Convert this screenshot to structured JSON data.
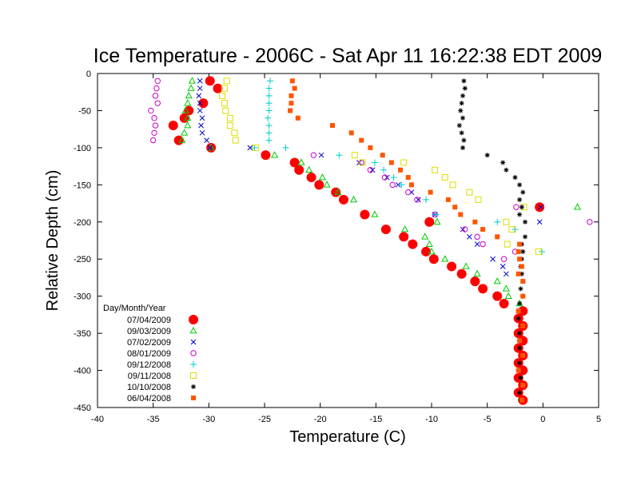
{
  "chart_data": {
    "type": "scatter",
    "title": "Ice Temperature - 2006C - Sat Apr 11 16:22:38 EDT 2009",
    "xlabel": "Temperature (C)",
    "ylabel": "Relative Depth (cm)",
    "xlim": [
      -40,
      5
    ],
    "ylim": [
      -450,
      0
    ],
    "xticks": [
      "-40",
      "-35",
      "-30",
      "-25",
      "-20",
      "-15",
      "-10",
      "-5",
      "0",
      "5"
    ],
    "yticks": [
      "0",
      "-50",
      "-100",
      "-150",
      "-200",
      "-250",
      "-300",
      "-350",
      "-400",
      "-450"
    ],
    "grid": false,
    "legend_title": "Day/Month/Year",
    "legend_position": "bottom-left",
    "series": [
      {
        "name": "07/04/2009",
        "marker": "filled-circle",
        "color": "#ff0000",
        "points": [
          [
            -29.9,
            -10
          ],
          [
            -29.2,
            -20
          ],
          [
            -30.5,
            -40
          ],
          [
            -31.8,
            -50
          ],
          [
            -32.2,
            -60
          ],
          [
            -33.2,
            -70
          ],
          [
            -32.7,
            -90
          ],
          [
            -29.8,
            -100
          ],
          [
            -24.9,
            -110
          ],
          [
            -22.3,
            -120
          ],
          [
            -21.9,
            -130
          ],
          [
            -20.8,
            -140
          ],
          [
            -20.1,
            -150
          ],
          [
            -18.6,
            -160
          ],
          [
            -17.9,
            -170
          ],
          [
            -16,
            -190
          ],
          [
            -14.1,
            -210
          ],
          [
            -12.5,
            -220
          ],
          [
            -11.7,
            -230
          ],
          [
            -10.5,
            -240
          ],
          [
            -9.8,
            -250
          ],
          [
            -8.2,
            -260
          ],
          [
            -7.3,
            -270
          ],
          [
            -6.1,
            -280
          ],
          [
            -5.4,
            -290
          ],
          [
            -4.1,
            -300
          ],
          [
            -3.5,
            -310
          ],
          [
            -10.2,
            -200
          ],
          [
            -0.3,
            -180
          ],
          [
            -1.8,
            -320
          ],
          [
            -2.2,
            -330
          ],
          [
            -1.8,
            -340
          ],
          [
            -2.2,
            -350
          ],
          [
            -1.8,
            -360
          ],
          [
            -2.2,
            -370
          ],
          [
            -1.8,
            -380
          ],
          [
            -2.2,
            -390
          ],
          [
            -1.8,
            -400
          ],
          [
            -2.2,
            -410
          ],
          [
            -1.8,
            -420
          ],
          [
            -2.2,
            -430
          ],
          [
            -1.8,
            -440
          ]
        ]
      },
      {
        "name": "09/03/2009",
        "marker": "triangle",
        "color": "#00cc00",
        "points": [
          [
            -31.5,
            -10
          ],
          [
            -31.6,
            -20
          ],
          [
            -31.8,
            -30
          ],
          [
            -31.9,
            -40
          ],
          [
            -32.1,
            -50
          ],
          [
            -31.9,
            -60
          ],
          [
            -31.9,
            -70
          ],
          [
            -32.2,
            -80
          ],
          [
            -32.4,
            -90
          ],
          [
            -29.8,
            -100
          ],
          [
            -24.1,
            -110
          ],
          [
            -21.7,
            -120
          ],
          [
            -21,
            -130
          ],
          [
            -19.8,
            -140
          ],
          [
            -19.4,
            -150
          ],
          [
            -18.4,
            -160
          ],
          [
            -17,
            -170
          ],
          [
            -15.1,
            -190
          ],
          [
            -12.4,
            -210
          ],
          [
            -10.6,
            -220
          ],
          [
            -10.2,
            -230
          ],
          [
            -10,
            -240
          ],
          [
            -8.8,
            -250
          ],
          [
            -6.9,
            -260
          ],
          [
            -5.9,
            -270
          ],
          [
            -4.1,
            -280
          ],
          [
            -3.3,
            -290
          ],
          [
            -3.1,
            -300
          ],
          [
            -2.1,
            -310
          ],
          [
            -9.5,
            -200
          ],
          [
            3.1,
            -180
          ]
        ]
      },
      {
        "name": "07/02/2009",
        "marker": "x",
        "color": "#0000cc",
        "points": [
          [
            -30.8,
            -10
          ],
          [
            -30.8,
            -20
          ],
          [
            -30.9,
            -30
          ],
          [
            -30.8,
            -40
          ],
          [
            -30.8,
            -50
          ],
          [
            -30.6,
            -60
          ],
          [
            -30.7,
            -70
          ],
          [
            -30.6,
            -80
          ],
          [
            -30.2,
            -90
          ],
          [
            -29.9,
            -100
          ],
          [
            -26.3,
            -100
          ],
          [
            -19.9,
            -110
          ],
          [
            -16.5,
            -120
          ],
          [
            -15.3,
            -130
          ],
          [
            -14,
            -140
          ],
          [
            -13,
            -150
          ],
          [
            -11.8,
            -160
          ],
          [
            -11.2,
            -170
          ],
          [
            -9.7,
            -190
          ],
          [
            -7.2,
            -210
          ],
          [
            -6.6,
            -220
          ],
          [
            -5.9,
            -230
          ],
          [
            -4.5,
            -250
          ],
          [
            -3.6,
            -260
          ],
          [
            -3.3,
            -270
          ],
          [
            -0.2,
            -180
          ],
          [
            -0.3,
            -200
          ]
        ]
      },
      {
        "name": "08/01/2009",
        "marker": "open-circle",
        "color": "#cc00cc",
        "points": [
          [
            -34.6,
            -10
          ],
          [
            -34.7,
            -20
          ],
          [
            -34.8,
            -30
          ],
          [
            -34.6,
            -40
          ],
          [
            -35.2,
            -50
          ],
          [
            -34.9,
            -60
          ],
          [
            -34.8,
            -70
          ],
          [
            -34.9,
            -80
          ],
          [
            -35,
            -90
          ],
          [
            -20.6,
            -110
          ],
          [
            -16.3,
            -120
          ],
          [
            -15.5,
            -130
          ],
          [
            -14.2,
            -140
          ],
          [
            -13.5,
            -150
          ],
          [
            -12.1,
            -160
          ],
          [
            -11.3,
            -170
          ],
          [
            -9.7,
            -190
          ],
          [
            -7,
            -210
          ],
          [
            -5.9,
            -220
          ],
          [
            -5.4,
            -230
          ],
          [
            -3.5,
            -250
          ],
          [
            -2.5,
            -240
          ],
          [
            -2.4,
            -180
          ],
          [
            4.2,
            -200
          ]
        ]
      },
      {
        "name": "09/12/2008",
        "marker": "plus",
        "color": "#00cccc",
        "points": [
          [
            -24.5,
            -10
          ],
          [
            -24.6,
            -20
          ],
          [
            -24.6,
            -30
          ],
          [
            -24.6,
            -40
          ],
          [
            -24.6,
            -50
          ],
          [
            -24.7,
            -60
          ],
          [
            -24.6,
            -70
          ],
          [
            -24.6,
            -80
          ],
          [
            -24.6,
            -90
          ],
          [
            -25.9,
            -100
          ],
          [
            -23.1,
            -100
          ],
          [
            -18.3,
            -110
          ],
          [
            -15.1,
            -120
          ],
          [
            -14.3,
            -130
          ],
          [
            -13.4,
            -140
          ],
          [
            -12.7,
            -150
          ],
          [
            -10.5,
            -170
          ],
          [
            -9.6,
            -190
          ],
          [
            -4.1,
            -200
          ],
          [
            -2.5,
            -210
          ],
          [
            -0.1,
            -240
          ]
        ]
      },
      {
        "name": "09/11/2008",
        "marker": "open-square",
        "color": "#dddd00",
        "points": [
          [
            -28.4,
            -10
          ],
          [
            -28.6,
            -20
          ],
          [
            -28.8,
            -30
          ],
          [
            -28.6,
            -40
          ],
          [
            -28.5,
            -50
          ],
          [
            -28.1,
            -60
          ],
          [
            -28.1,
            -70
          ],
          [
            -27.7,
            -80
          ],
          [
            -27.6,
            -90
          ],
          [
            -25.8,
            -100
          ],
          [
            -16.9,
            -110
          ],
          [
            -16.2,
            -120
          ],
          [
            -12.5,
            -120
          ],
          [
            -9.7,
            -130
          ],
          [
            -8.8,
            -140
          ],
          [
            -8.1,
            -150
          ],
          [
            -6.6,
            -160
          ],
          [
            -5.8,
            -170
          ],
          [
            -1.7,
            -180
          ],
          [
            -3.3,
            -200
          ],
          [
            -2.8,
            -210
          ],
          [
            -3.2,
            -230
          ],
          [
            -0.4,
            -240
          ]
        ]
      },
      {
        "name": "10/10/2008",
        "marker": "star",
        "color": "#000000",
        "points": [
          [
            -7.1,
            -10
          ],
          [
            -7,
            -20
          ],
          [
            -7.2,
            -30
          ],
          [
            -7.3,
            -40
          ],
          [
            -7.4,
            -50
          ],
          [
            -7.2,
            -60
          ],
          [
            -7.5,
            -70
          ],
          [
            -7.3,
            -80
          ],
          [
            -7.1,
            -90
          ],
          [
            -7.2,
            -100
          ],
          [
            -5,
            -110
          ],
          [
            -3.6,
            -120
          ],
          [
            -3.3,
            -130
          ],
          [
            -2.5,
            -140
          ],
          [
            -2.1,
            -150
          ],
          [
            -1.8,
            -160
          ],
          [
            -2.1,
            -170
          ],
          [
            -1.6,
            -200
          ],
          [
            -1.9,
            -180
          ],
          [
            -2.1,
            -190
          ],
          [
            -1.6,
            -220
          ],
          [
            -1.9,
            -230
          ],
          [
            -1.8,
            -240
          ],
          [
            -1.9,
            -250
          ],
          [
            -2,
            -260
          ],
          [
            -1.9,
            -270
          ],
          [
            -1.8,
            -280
          ],
          [
            -2,
            -290
          ],
          [
            -1.8,
            -300
          ],
          [
            -2.1,
            -310
          ],
          [
            -2.2,
            -330
          ],
          [
            -2.1,
            -350
          ],
          [
            -2.1,
            -370
          ],
          [
            -2.1,
            -390
          ],
          [
            -2,
            -410
          ],
          [
            -2.1,
            -430
          ],
          [
            -2,
            -440
          ]
        ]
      },
      {
        "name": "06/04/2008",
        "marker": "filled-square",
        "color": "#ff5500",
        "points": [
          [
            -22.5,
            -10
          ],
          [
            -22.3,
            -20
          ],
          [
            -22.6,
            -30
          ],
          [
            -22.6,
            -40
          ],
          [
            -22.7,
            -50
          ],
          [
            -22,
            -60
          ],
          [
            -18.9,
            -70
          ],
          [
            -17.2,
            -80
          ],
          [
            -16.3,
            -90
          ],
          [
            -15.5,
            -100
          ],
          [
            -14.4,
            -110
          ],
          [
            -13.6,
            -120
          ],
          [
            -12.8,
            -130
          ],
          [
            -12.1,
            -140
          ],
          [
            -11.8,
            -150
          ],
          [
            -10.1,
            -160
          ],
          [
            -8.5,
            -170
          ],
          [
            -7.9,
            -180
          ],
          [
            -7.4,
            -190
          ],
          [
            -6.1,
            -200
          ],
          [
            -5.4,
            -210
          ],
          [
            -4.1,
            -220
          ],
          [
            -2.1,
            -230
          ],
          [
            -2.2,
            -240
          ],
          [
            -2.1,
            -250
          ],
          [
            -1.9,
            -260
          ],
          [
            -2.2,
            -270
          ],
          [
            -1.8,
            -280
          ],
          [
            -1.8,
            -300
          ],
          [
            -2.2,
            -320
          ],
          [
            -1.8,
            -340
          ],
          [
            -2.1,
            -360
          ],
          [
            -1.8,
            -380
          ],
          [
            -2.2,
            -400
          ],
          [
            -1.8,
            -420
          ],
          [
            -1.9,
            -440
          ]
        ]
      }
    ]
  }
}
